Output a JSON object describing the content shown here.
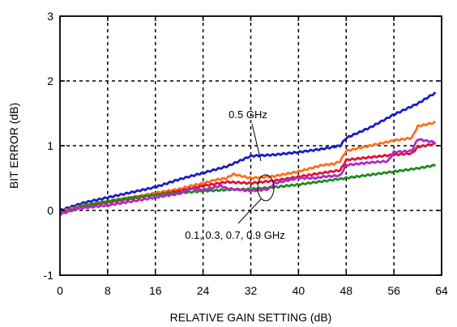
{
  "chart_data": {
    "type": "line",
    "title": "",
    "xlabel": "RELATIVE GAIN SETTING (dB)",
    "ylabel": "BIT ERROR (dB)",
    "xlim": [
      0,
      64
    ],
    "ylim": [
      -1,
      3
    ],
    "xticks": [
      "0",
      "8",
      "16",
      "24",
      "32",
      "40",
      "48",
      "56",
      "64"
    ],
    "yticks": [
      "-1",
      "0",
      "1",
      "2",
      "3"
    ],
    "grid": true,
    "annotations": [
      {
        "text": "0.5 GHz"
      },
      {
        "text": "0.1, 0.3, 0.7, 0.9 GHz"
      }
    ],
    "series": [
      {
        "color": "#1c1cc8",
        "x": [
          0,
          4,
          8,
          12,
          16,
          20,
          24,
          28,
          32,
          36,
          40,
          44,
          47,
          48,
          52,
          56,
          60,
          63
        ],
        "y": [
          0.0,
          0.12,
          0.2,
          0.28,
          0.36,
          0.48,
          0.58,
          0.68,
          0.84,
          0.86,
          0.9,
          0.95,
          1.0,
          1.12,
          1.28,
          1.48,
          1.65,
          1.82
        ]
      },
      {
        "color": "#ff6e1c",
        "x": [
          0,
          4,
          8,
          12,
          16,
          20,
          22,
          24,
          26,
          28,
          29,
          32,
          35,
          36,
          40,
          44,
          46,
          47,
          48,
          52,
          56,
          59,
          60,
          63
        ],
        "y": [
          -0.02,
          0.08,
          0.14,
          0.2,
          0.27,
          0.33,
          0.38,
          0.42,
          0.47,
          0.5,
          0.56,
          0.5,
          0.52,
          0.53,
          0.6,
          0.7,
          0.72,
          0.76,
          0.92,
          1.0,
          1.08,
          1.12,
          1.3,
          1.36
        ]
      },
      {
        "color": "#dc1432",
        "x": [
          0,
          4,
          8,
          12,
          16,
          20,
          24,
          28,
          32,
          36,
          40,
          44,
          47,
          48,
          52,
          56,
          59,
          60,
          63
        ],
        "y": [
          -0.04,
          0.06,
          0.12,
          0.18,
          0.24,
          0.3,
          0.38,
          0.44,
          0.42,
          0.46,
          0.52,
          0.58,
          0.62,
          0.78,
          0.82,
          0.86,
          0.88,
          0.98,
          1.03
        ]
      },
      {
        "color": "#1e8c1e",
        "x": [
          0,
          4,
          8,
          12,
          16,
          20,
          24,
          28,
          32,
          36,
          40,
          44,
          48,
          52,
          56,
          60,
          63
        ],
        "y": [
          -0.05,
          0.08,
          0.14,
          0.2,
          0.24,
          0.27,
          0.3,
          0.32,
          0.33,
          0.36,
          0.4,
          0.45,
          0.5,
          0.55,
          0.6,
          0.65,
          0.7
        ]
      },
      {
        "color": "#b428c8",
        "x": [
          0,
          3,
          8,
          12,
          16,
          20,
          22,
          24,
          27,
          28,
          32,
          35,
          36,
          40,
          43,
          44,
          47,
          48,
          52,
          55,
          56,
          59,
          60,
          63
        ],
        "y": [
          -0.06,
          0.03,
          0.08,
          0.14,
          0.2,
          0.26,
          0.34,
          0.32,
          0.38,
          0.34,
          0.3,
          0.33,
          0.42,
          0.5,
          0.5,
          0.52,
          0.54,
          0.7,
          0.74,
          0.76,
          0.9,
          0.92,
          1.1,
          1.05
        ]
      }
    ]
  }
}
